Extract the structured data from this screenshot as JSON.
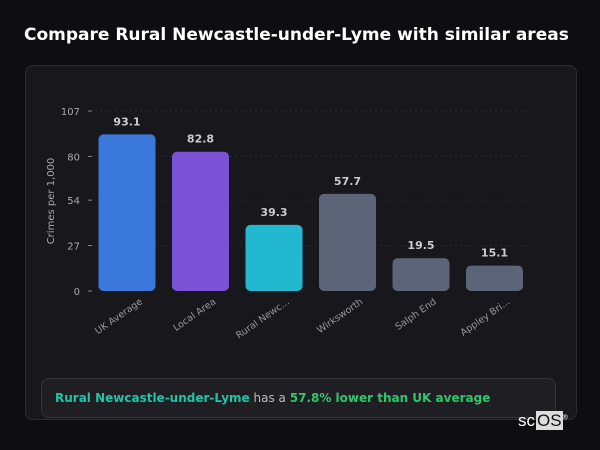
{
  "title": "Compare Rural Newcastle-under-Lyme with similar areas",
  "chart_data": {
    "type": "bar",
    "categories": [
      "UK Average",
      "Local Area",
      "Rural Newc...",
      "Wirksworth",
      "Salph End",
      "Appley Bri..."
    ],
    "values": [
      93.1,
      82.8,
      39.3,
      57.7,
      19.5,
      15.1
    ],
    "colors": [
      "#3b78dc",
      "#7b52d6",
      "#22b8cf",
      "#5c6577",
      "#5c6577",
      "#5c6577"
    ],
    "ylabel": "Crimes per 1,000",
    "yticks": [
      0,
      27,
      54,
      80,
      107
    ],
    "ylim": [
      0,
      107
    ],
    "grid": true
  },
  "summary": {
    "area": "Rural Newcastle-under-Lyme",
    "mid": " has a ",
    "stat": "57.8% lower than UK average"
  },
  "logo": {
    "pre": "sc",
    "box": "OS",
    "mark": "®"
  }
}
